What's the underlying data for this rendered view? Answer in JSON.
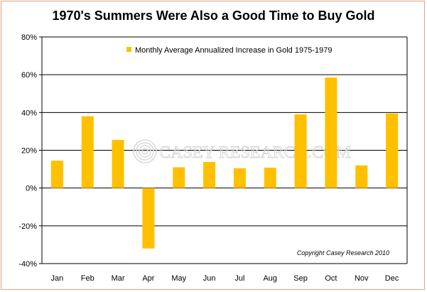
{
  "chart_data": {
    "type": "bar",
    "title": "1970's Summers Were Also a Good Time to Buy Gold",
    "categories": [
      "Jan",
      "Feb",
      "Mar",
      "Apr",
      "May",
      "Jun",
      "Jul",
      "Aug",
      "Sep",
      "Oct",
      "Nov",
      "Dec"
    ],
    "series": [
      {
        "name": "Monthly Average Annualized Increase in Gold 1975-1979",
        "values": [
          14.5,
          38,
          25.5,
          -32,
          11,
          13.8,
          10.5,
          10.8,
          39,
          58.5,
          12,
          39.5
        ]
      }
    ],
    "ylim": [
      -40,
      80
    ],
    "yticks": [
      80,
      60,
      40,
      20,
      0,
      -20,
      -40
    ],
    "ytick_labels": [
      "80%",
      "60%",
      "40%",
      "20%",
      "0%",
      "-20%",
      "-40%"
    ],
    "xlabel": "",
    "ylabel": "",
    "grid": true,
    "legend_position": "top",
    "bar_color": "#ffc000",
    "annotation": "Copyright Casey Research 2010",
    "watermark": "CASEY RESEARCH.COM"
  }
}
